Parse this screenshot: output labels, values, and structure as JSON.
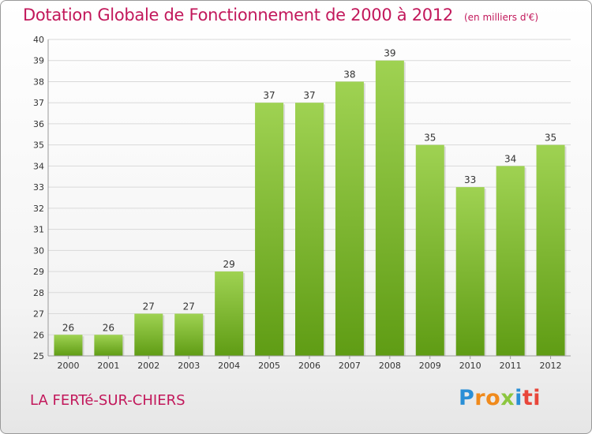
{
  "header": {
    "title": "Dotation Globale de Fonctionnement de 2000 à 2012",
    "unit": "(en milliers d'€)"
  },
  "footer": {
    "place": "LA FERTé-SUR-CHIERS",
    "logo": "Proxiti"
  },
  "colors": {
    "title": "#c2185b",
    "bar_top": "#9fd252",
    "bar_bottom": "#5f9c14"
  },
  "chart_data": {
    "type": "bar",
    "categories": [
      "2000",
      "2001",
      "2002",
      "2003",
      "2004",
      "2005",
      "2006",
      "2007",
      "2008",
      "2009",
      "2010",
      "2011",
      "2012"
    ],
    "values": [
      26,
      26,
      27,
      27,
      29,
      37,
      37,
      38,
      39,
      35,
      33,
      34,
      35
    ],
    "title": "Dotation Globale de Fonctionnement de 2000 à 2012",
    "subtitle": "(en milliers d'€)",
    "ylim": [
      25,
      40
    ],
    "yticks": [
      25,
      26,
      27,
      28,
      29,
      30,
      31,
      32,
      33,
      34,
      35,
      36,
      37,
      38,
      39,
      40
    ],
    "grid": true,
    "data_labels": true
  }
}
